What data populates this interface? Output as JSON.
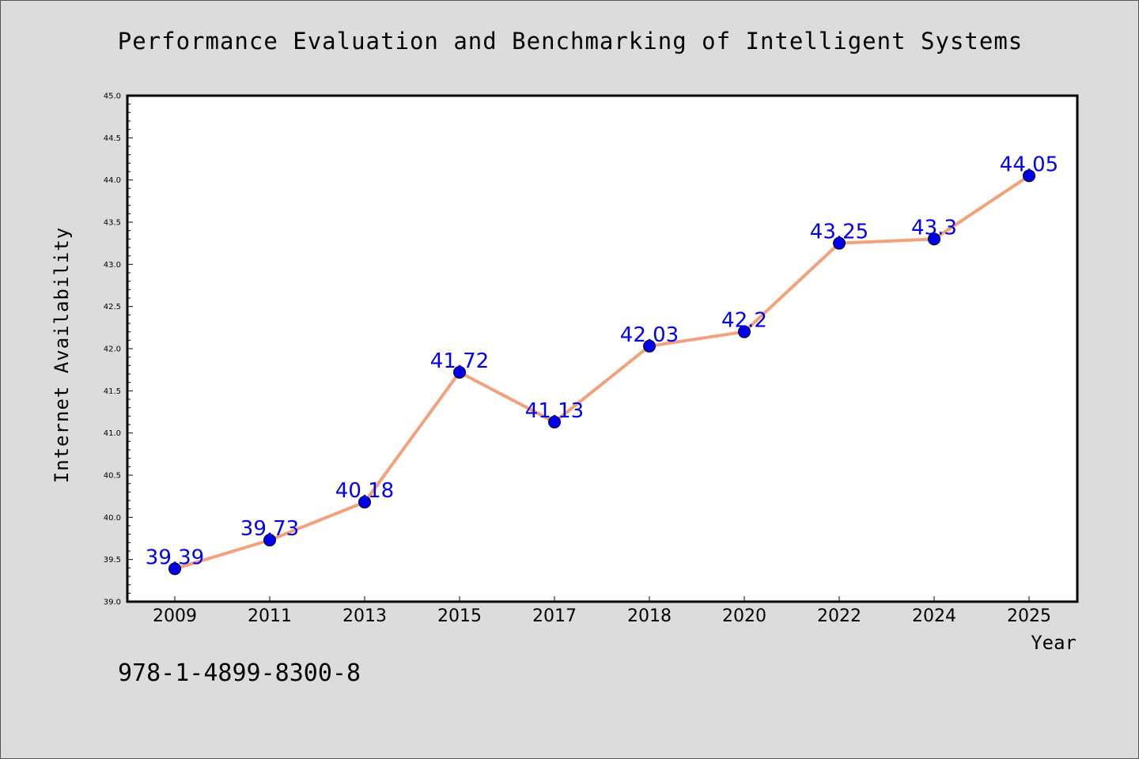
{
  "chart_data": {
    "type": "line",
    "title": "Performance Evaluation and Benchmarking of Intelligent Systems",
    "xlabel": "Year",
    "ylabel": "Internet Availability",
    "categories": [
      "2009",
      "2011",
      "2013",
      "2015",
      "2017",
      "2018",
      "2020",
      "2022",
      "2024",
      "2025"
    ],
    "series": [
      {
        "values": [
          39.39,
          39.73,
          40.18,
          41.72,
          41.13,
          42.03,
          42.2,
          43.25,
          43.3,
          44.05
        ],
        "data_labels": [
          "39.39",
          "39.73",
          "40.18",
          "41.72",
          "41.13",
          "42.03",
          "42.2",
          "43.25",
          "43.3",
          "44.05"
        ]
      }
    ],
    "ylim": [
      39.0,
      45.0
    ],
    "yticks": [
      "39.0",
      "39.5",
      "40.0",
      "40.5",
      "41.0",
      "41.5",
      "42.0",
      "42.5",
      "43.0",
      "43.5",
      "44.0",
      "44.5",
      "45.0"
    ],
    "grid": false,
    "colors": {
      "line": "#f4a07a",
      "marker": "#0000ee",
      "label": "#0000ee"
    }
  },
  "footnote": "978-1-4899-8300-8"
}
